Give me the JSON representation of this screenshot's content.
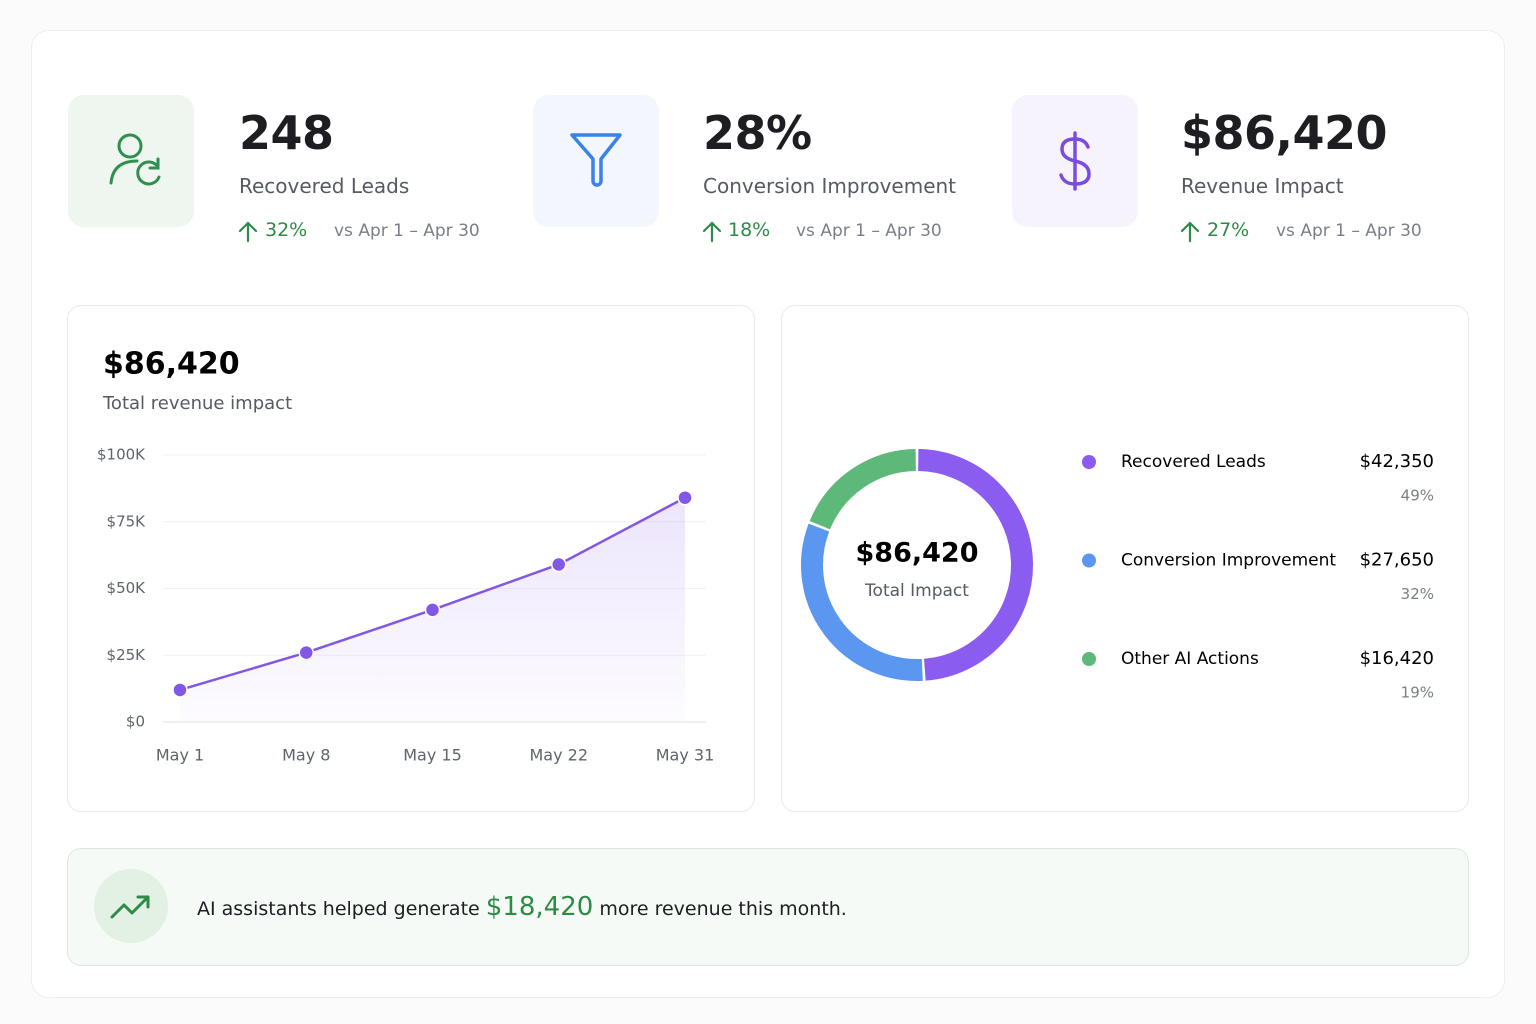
{
  "stats": [
    {
      "value": "248",
      "label": "Recovered Leads",
      "change": "32%",
      "comparison": "vs Apr 1 – Apr 30"
    },
    {
      "value": "28%",
      "label": "Conversion Improvement",
      "change": "18%",
      "comparison": "vs Apr 1 – Apr 30"
    },
    {
      "value": "$86,420",
      "label": "Revenue Impact",
      "change": "27%",
      "comparison": "vs Apr 1 – Apr 30"
    }
  ],
  "chart_data": [
    {
      "type": "line",
      "title": "$86,420",
      "subtitle": "Total revenue impact",
      "categories": [
        "May 1",
        "May 8",
        "May 15",
        "May 22",
        "May 31"
      ],
      "values": [
        12000,
        26000,
        42000,
        59000,
        84000
      ],
      "color": "#8257e5",
      "ylim": [
        0,
        100000
      ],
      "yticks": [
        {
          "value": 0,
          "label": "$0"
        },
        {
          "value": 25000,
          "label": "$25K"
        },
        {
          "value": 50000,
          "label": "$50K"
        },
        {
          "value": 75000,
          "label": "$75K"
        },
        {
          "value": 100000,
          "label": "$100K"
        }
      ],
      "grid": true
    },
    {
      "type": "pie",
      "center_value": "$86,420",
      "center_label": "Total Impact",
      "categories": [
        "Recovered Leads",
        "Conversion Improvement",
        "Other AI Actions"
      ],
      "values": [
        42350,
        27650,
        16420
      ],
      "value_labels": [
        "$42,350",
        "$27,650",
        "$16,420"
      ],
      "shares": [
        49,
        32,
        19
      ],
      "share_labels": [
        "49%",
        "32%",
        "19%"
      ],
      "colors": [
        "#8b5cf0",
        "#5b97f0",
        "#5db97a"
      ]
    }
  ],
  "banner": {
    "prefix": "AI assistants helped generate",
    "amount": "$18,420",
    "suffix": "more revenue this month."
  }
}
